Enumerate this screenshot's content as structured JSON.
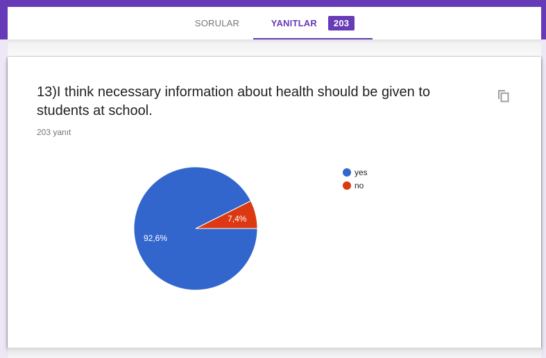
{
  "header": {
    "accent_color": "#673ab7",
    "tabs": [
      {
        "label": "SORULAR",
        "active": false
      },
      {
        "label": "YANITLAR",
        "active": true,
        "badge": "203"
      }
    ]
  },
  "question": {
    "title": "13)I think necessary information about health should be given to students at school.",
    "response_count": "203 yanıt",
    "copy_icon": "copy-icon"
  },
  "legend": {
    "items": [
      {
        "label": "yes",
        "color": "#3366cc"
      },
      {
        "label": "no",
        "color": "#dc3912"
      }
    ]
  },
  "chart_data": {
    "type": "pie",
    "title": "",
    "categories": [
      "yes",
      "no"
    ],
    "values": [
      92.6,
      7.4
    ],
    "labels": [
      "92,6%",
      "7,4%"
    ],
    "colors": [
      "#3366cc",
      "#dc3912"
    ],
    "legend_position": "right",
    "total_responses": 203
  }
}
